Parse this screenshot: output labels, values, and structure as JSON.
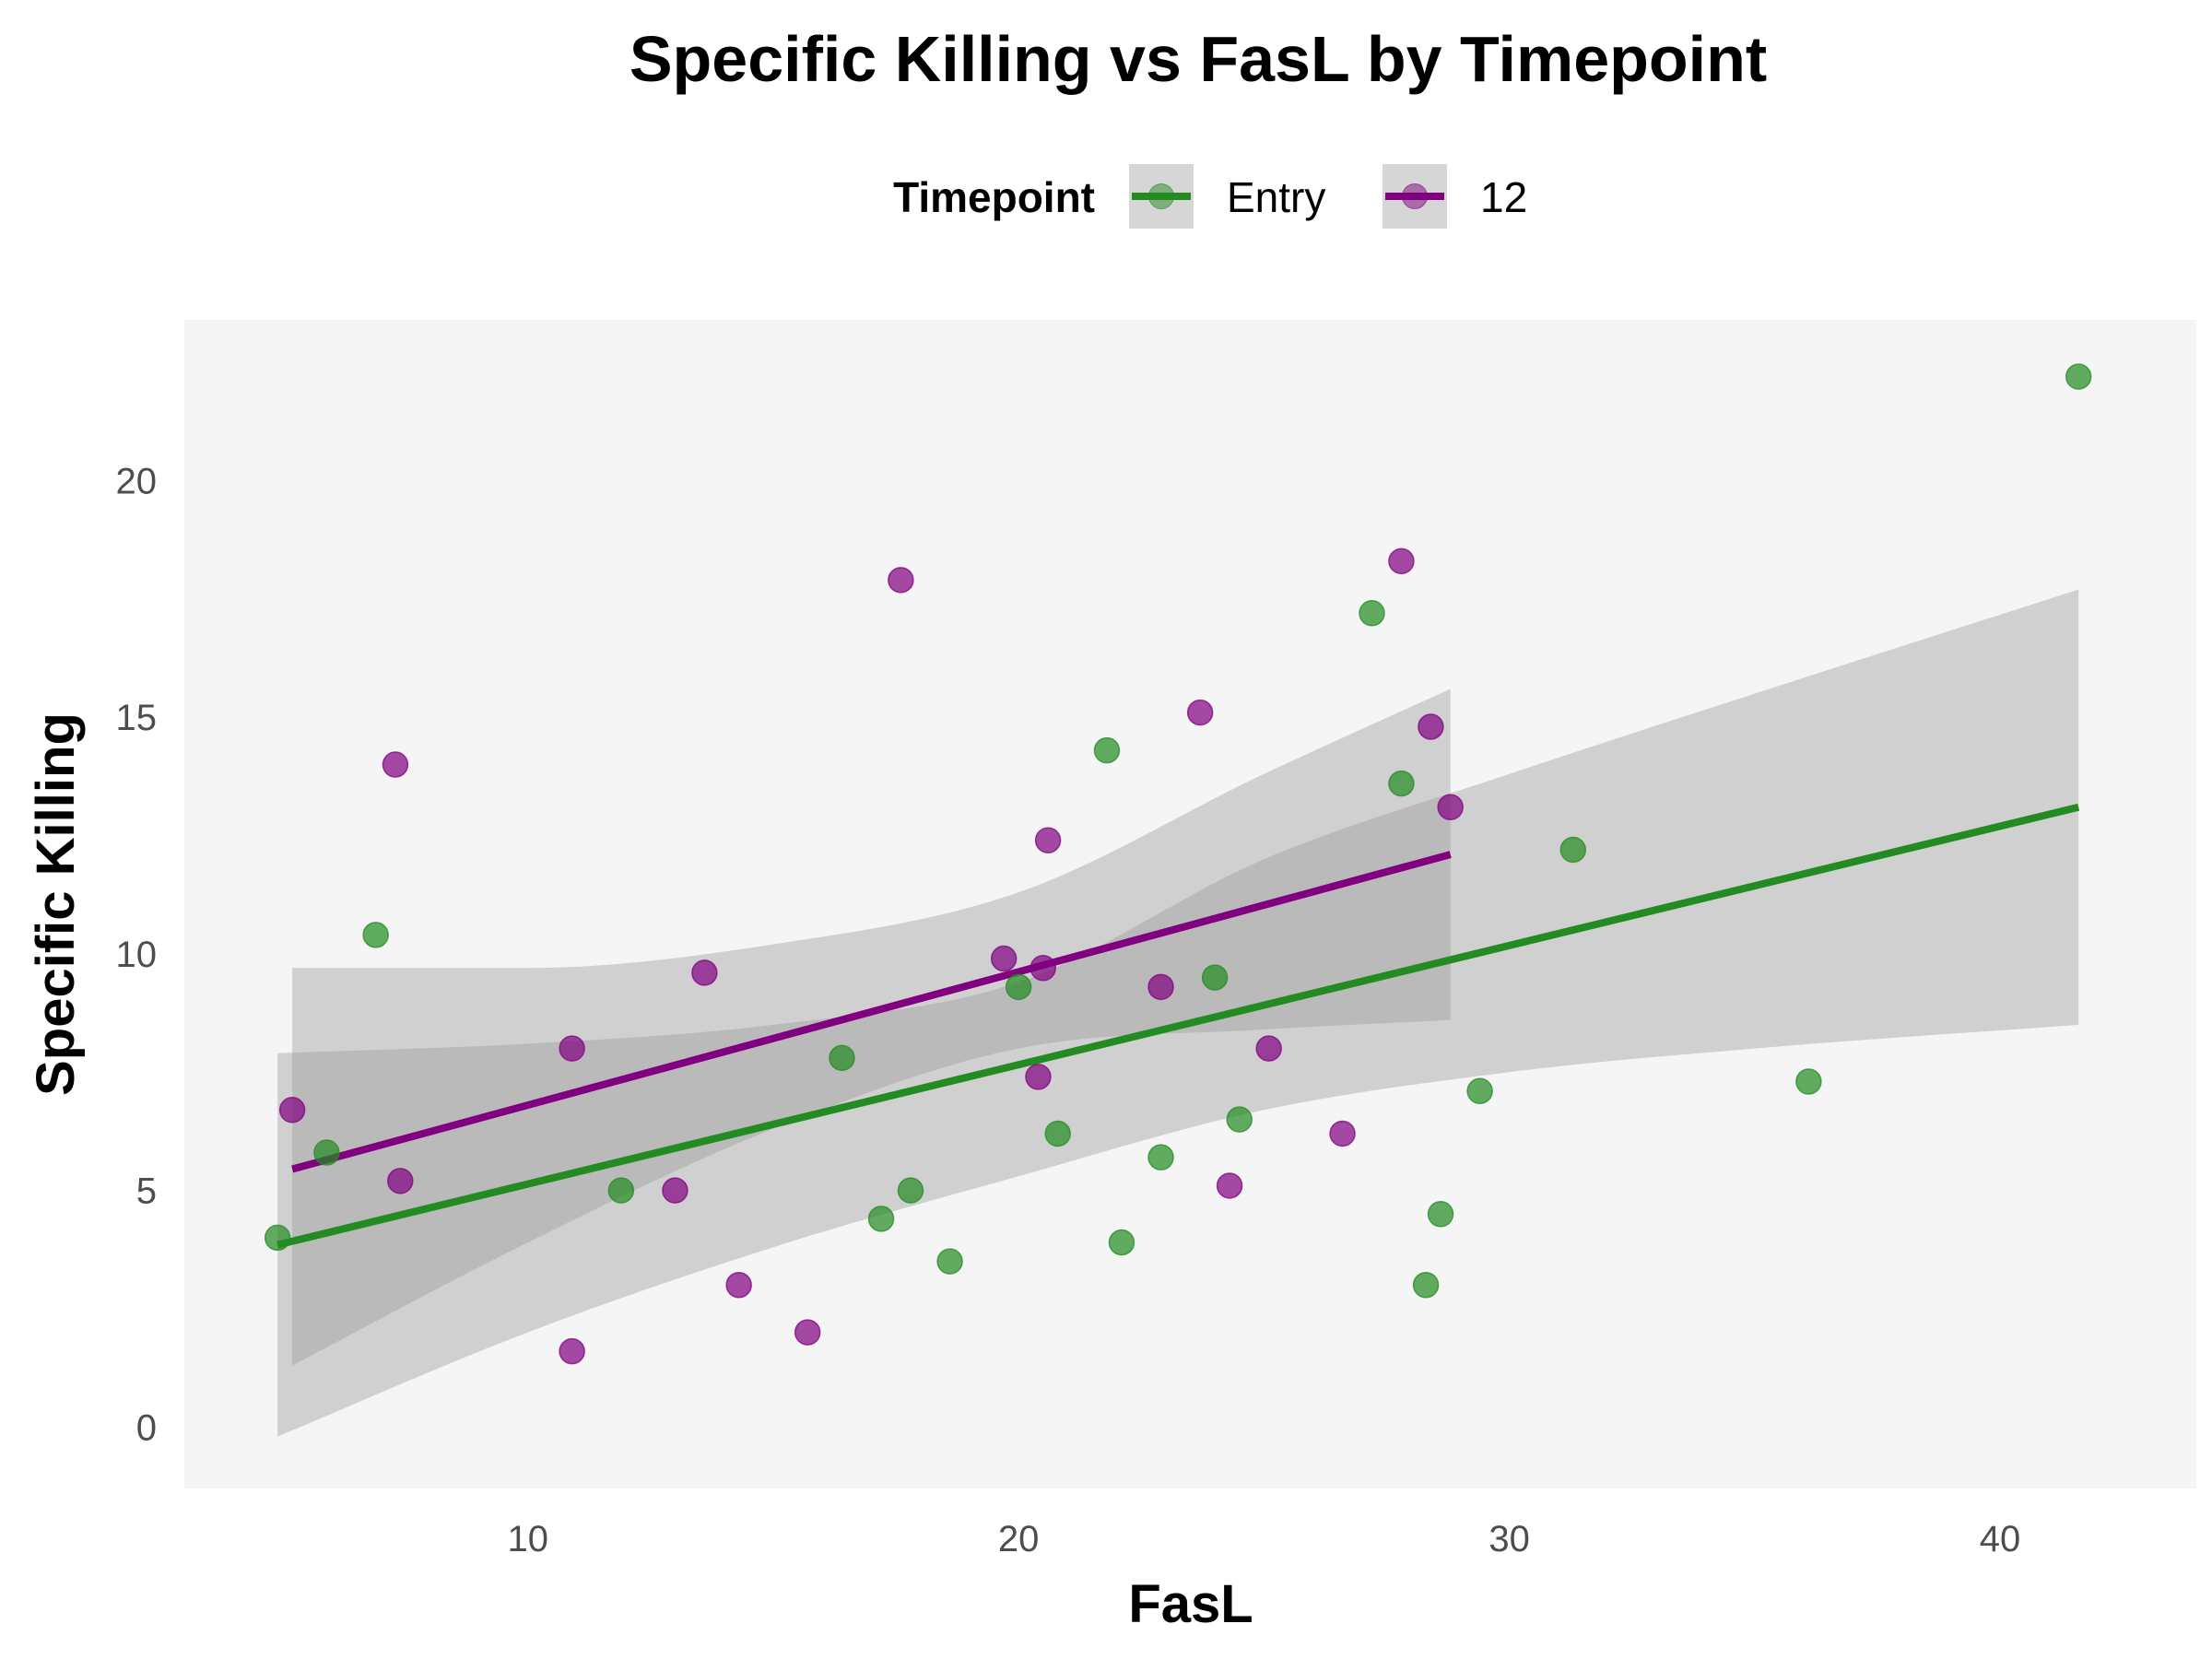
{
  "chart_data": {
    "type": "scatter",
    "title": "Specific Killing vs FasL by Timepoint",
    "xlabel": "FasL",
    "ylabel": "Specific Killing",
    "xlim": [
      3,
      44
    ],
    "ylim": [
      -1.3,
      23.4
    ],
    "x_ticks": [
      10,
      20,
      30,
      40
    ],
    "y_ticks": [
      0,
      5,
      10,
      15,
      20
    ],
    "x_tick_labels": [
      "10",
      "20",
      "30",
      "40"
    ],
    "y_tick_labels": [
      "0",
      "5",
      "10",
      "15",
      "20"
    ],
    "grid": false,
    "legend": {
      "title": "Timepoint",
      "position": "top"
    },
    "series": [
      {
        "name": "Entry",
        "color": "#228B22",
        "points": [
          {
            "x": 4.9,
            "y": 4.0
          },
          {
            "x": 5.9,
            "y": 5.8
          },
          {
            "x": 6.9,
            "y": 10.4
          },
          {
            "x": 11.9,
            "y": 5.0
          },
          {
            "x": 16.4,
            "y": 7.8
          },
          {
            "x": 17.2,
            "y": 4.4
          },
          {
            "x": 17.8,
            "y": 5.0
          },
          {
            "x": 18.6,
            "y": 3.5
          },
          {
            "x": 20.0,
            "y": 9.3
          },
          {
            "x": 20.8,
            "y": 6.2
          },
          {
            "x": 21.8,
            "y": 14.3
          },
          {
            "x": 22.1,
            "y": 3.9
          },
          {
            "x": 22.9,
            "y": 5.7
          },
          {
            "x": 24.0,
            "y": 9.5
          },
          {
            "x": 24.5,
            "y": 6.5
          },
          {
            "x": 27.2,
            "y": 17.2
          },
          {
            "x": 27.8,
            "y": 13.6
          },
          {
            "x": 28.3,
            "y": 3.0
          },
          {
            "x": 28.6,
            "y": 4.5
          },
          {
            "x": 29.4,
            "y": 7.1
          },
          {
            "x": 31.3,
            "y": 12.2
          },
          {
            "x": 36.1,
            "y": 7.3
          },
          {
            "x": 41.6,
            "y": 22.2
          }
        ],
        "fit": {
          "x": [
            4.9,
            41.6
          ],
          "y": [
            3.85,
            13.1
          ]
        },
        "ci": {
          "x": [
            4.9,
            10,
            15,
            20,
            25,
            30,
            35,
            41.6
          ],
          "lower": [
            -0.2,
            2.0,
            3.8,
            5.3,
            6.7,
            7.5,
            8.0,
            8.5
          ],
          "upper": [
            7.9,
            8.1,
            8.5,
            9.4,
            12.0,
            13.8,
            15.5,
            17.7
          ]
        }
      },
      {
        "name": "12",
        "color": "#800080",
        "points": [
          {
            "x": 5.2,
            "y": 6.7
          },
          {
            "x": 7.3,
            "y": 14.0
          },
          {
            "x": 7.4,
            "y": 5.2
          },
          {
            "x": 10.9,
            "y": 8.0
          },
          {
            "x": 10.9,
            "y": 1.6
          },
          {
            "x": 13.0,
            "y": 5.0
          },
          {
            "x": 13.6,
            "y": 9.6
          },
          {
            "x": 14.3,
            "y": 3.0
          },
          {
            "x": 15.7,
            "y": 2.0
          },
          {
            "x": 17.6,
            "y": 17.9
          },
          {
            "x": 19.7,
            "y": 9.9
          },
          {
            "x": 20.4,
            "y": 7.4
          },
          {
            "x": 20.5,
            "y": 9.7
          },
          {
            "x": 20.6,
            "y": 12.4
          },
          {
            "x": 22.9,
            "y": 9.3
          },
          {
            "x": 23.7,
            "y": 15.1
          },
          {
            "x": 24.3,
            "y": 5.1
          },
          {
            "x": 25.1,
            "y": 8.0
          },
          {
            "x": 26.6,
            "y": 6.2
          },
          {
            "x": 27.8,
            "y": 18.3
          },
          {
            "x": 28.4,
            "y": 14.8
          },
          {
            "x": 28.8,
            "y": 13.1
          }
        ],
        "fit": {
          "x": [
            5.2,
            28.8
          ],
          "y": [
            5.45,
            12.1
          ]
        },
        "ci": {
          "x": [
            5.2,
            10,
            15,
            20,
            25,
            28.8
          ],
          "lower": [
            1.3,
            3.9,
            6.3,
            8.0,
            8.4,
            8.6
          ],
          "upper": [
            9.7,
            9.7,
            10.2,
            11.3,
            13.8,
            15.6
          ]
        }
      }
    ]
  }
}
